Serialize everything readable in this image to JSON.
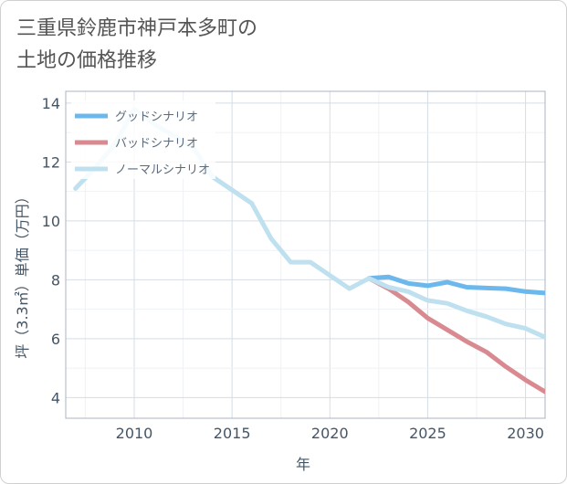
{
  "title": "三重県鈴鹿市神戸本多町の\n土地の価格推移",
  "chart_data": {
    "type": "line",
    "xlabel": "年",
    "ylabel": "坪（3.3㎡）単価（万円）",
    "xlim": [
      2006.5,
      2031
    ],
    "ylim": [
      3.3,
      14.4
    ],
    "xticks": [
      2010,
      2015,
      2020,
      2025,
      2030
    ],
    "yticks": [
      4,
      6,
      8,
      10,
      12,
      14
    ],
    "grid": true,
    "legend_position": "top-left",
    "series": [
      {
        "name": "グッドシナリオ",
        "color": "#6cb8ec",
        "x": [
          2022,
          2023,
          2024,
          2025,
          2026,
          2027,
          2028,
          2029,
          2030,
          2031
        ],
        "y": [
          8.05,
          8.1,
          7.88,
          7.8,
          7.92,
          7.75,
          7.72,
          7.7,
          7.6,
          7.55
        ]
      },
      {
        "name": "バッドシナリオ",
        "color": "#d98a90",
        "x": [
          2022,
          2023,
          2024,
          2025,
          2026,
          2027,
          2028,
          2029,
          2030,
          2031
        ],
        "y": [
          8.05,
          7.7,
          7.25,
          6.7,
          6.3,
          5.9,
          5.55,
          5.05,
          4.6,
          4.2
        ]
      },
      {
        "name": "ノーマルシナリオ",
        "color": "#bfe0ef",
        "x": [
          2007,
          2008,
          2009,
          2010,
          2011,
          2012,
          2013,
          2014,
          2015,
          2016,
          2017,
          2018,
          2019,
          2020,
          2021,
          2022,
          2023,
          2024,
          2025,
          2026,
          2027,
          2028,
          2029,
          2030,
          2031
        ],
        "y": [
          11.1,
          11.8,
          12.6,
          13.8,
          13.3,
          12.9,
          12.5,
          11.5,
          11.05,
          10.6,
          9.4,
          8.6,
          8.6,
          8.15,
          7.7,
          8.05,
          7.75,
          7.6,
          7.3,
          7.2,
          6.95,
          6.75,
          6.5,
          6.35,
          6.05
        ]
      }
    ]
  }
}
